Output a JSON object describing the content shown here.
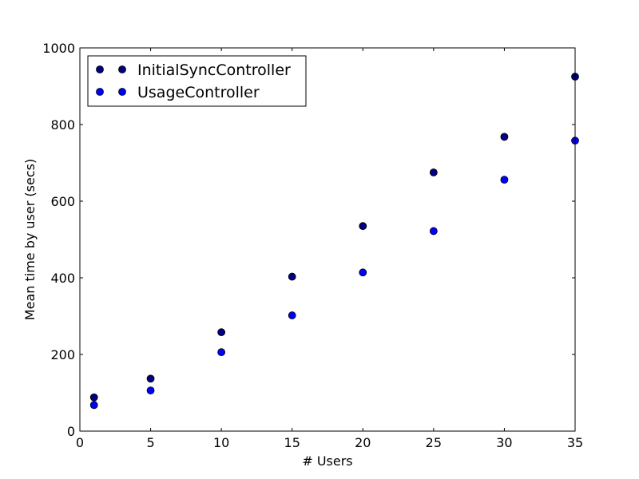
{
  "chart_data": {
    "type": "scatter",
    "title": "",
    "xlabel": "# Users",
    "ylabel": "Mean time by user (secs)",
    "xlim": [
      0,
      35
    ],
    "ylim": [
      0,
      1000
    ],
    "xticks": [
      0,
      5,
      10,
      15,
      20,
      25,
      30,
      35
    ],
    "yticks": [
      0,
      200,
      400,
      600,
      800,
      1000
    ],
    "grid": false,
    "legend_position": "upper-left",
    "series": [
      {
        "name": "InitialSyncController",
        "color": "#000080",
        "x": [
          1,
          5,
          10,
          15,
          20,
          25,
          30,
          35
        ],
        "y": [
          88,
          137,
          258,
          403,
          535,
          675,
          768,
          925
        ]
      },
      {
        "name": "UsageController",
        "color": "#0000ff",
        "x": [
          1,
          5,
          10,
          15,
          20,
          25,
          30,
          35
        ],
        "y": [
          68,
          106,
          206,
          302,
          414,
          522,
          656,
          758
        ]
      }
    ]
  }
}
